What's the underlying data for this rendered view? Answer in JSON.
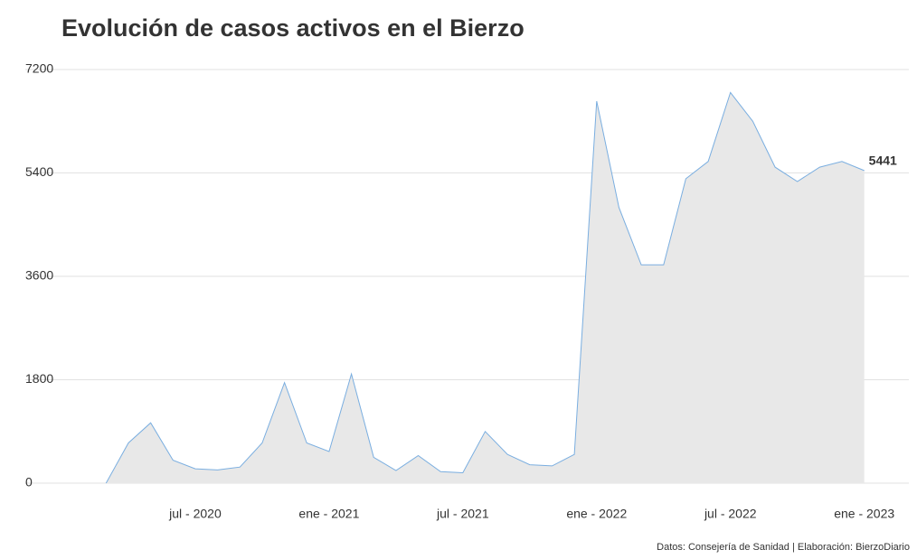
{
  "chart_data": {
    "type": "area",
    "title": "Evolución de casos activos en el Bierzo",
    "source": "Datos: Consejería de Sanidad | Elaboración: BierzoDiario",
    "x": [
      "2020-03",
      "2020-04",
      "2020-05",
      "2020-06",
      "2020-07",
      "2020-08",
      "2020-09",
      "2020-10",
      "2020-11",
      "2020-12",
      "2021-01",
      "2021-02",
      "2021-03",
      "2021-04",
      "2021-05",
      "2021-06",
      "2021-07",
      "2021-08",
      "2021-09",
      "2021-10",
      "2021-11",
      "2021-12",
      "2022-01",
      "2022-02",
      "2022-03",
      "2022-04",
      "2022-05",
      "2022-06",
      "2022-07",
      "2022-08",
      "2022-09",
      "2022-10",
      "2022-11",
      "2022-12",
      "2023-01"
    ],
    "values": [
      0,
      700,
      1050,
      400,
      250,
      230,
      280,
      700,
      1750,
      700,
      550,
      1900,
      450,
      220,
      480,
      200,
      180,
      900,
      500,
      320,
      300,
      500,
      6650,
      4800,
      3800,
      3800,
      5300,
      5600,
      6800,
      6300,
      5500,
      5250,
      5500,
      5600,
      5441
    ],
    "color": "#7aaee0",
    "fill": "#e8e8e8",
    "xlim": [
      "2020-01",
      "2023-03"
    ],
    "xticks": [
      {
        "value": "2020-07",
        "label": "jul - 2020"
      },
      {
        "value": "2021-01",
        "label": "ene - 2021"
      },
      {
        "value": "2021-07",
        "label": "jul - 2021"
      },
      {
        "value": "2022-01",
        "label": "ene - 2022"
      },
      {
        "value": "2022-07",
        "label": "jul - 2022"
      },
      {
        "value": "2023-01",
        "label": "ene - 2023"
      }
    ],
    "ylim": [
      0,
      7200
    ],
    "yticks": [
      0,
      1800,
      3600,
      5400,
      7200
    ],
    "grid": true
  }
}
